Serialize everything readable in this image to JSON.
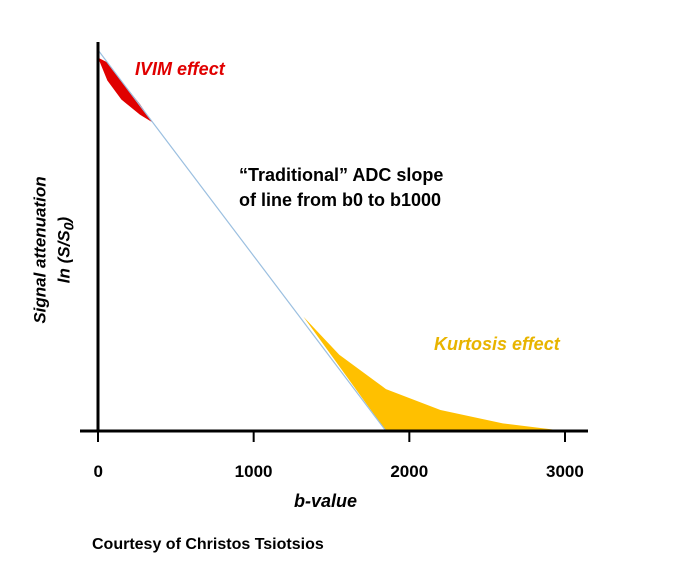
{
  "chart_data": {
    "type": "line",
    "xlabel": "b-value",
    "ylabel_line1": "Signal attenuation",
    "ylabel_line2_prefix": "ln (S/S",
    "ylabel_line2_sub": "0",
    "ylabel_line2_suffix": ")",
    "x_ticks": [
      {
        "value": 0,
        "label": "0"
      },
      {
        "value": 1000,
        "label": "1000"
      },
      {
        "value": 2000,
        "label": "2000"
      },
      {
        "value": 3000,
        "label": "3000"
      }
    ],
    "xlim": [
      0,
      3000
    ],
    "ylim": [
      0,
      1
    ],
    "adc_line": {
      "x": [
        0,
        1850
      ],
      "y": [
        1,
        0
      ],
      "color": "#9bbfe0"
    },
    "regions": [
      {
        "name": "IVIM effect",
        "color": "#e00000",
        "label_color": "#e00000",
        "x": [
          0,
          60,
          150,
          270,
          350,
          270,
          150,
          60,
          0
        ],
        "y": [
          0.98,
          0.92,
          0.87,
          0.83,
          0.81,
          0.8575,
          0.9189,
          0.9676,
          0.98
        ]
      },
      {
        "name": "Kurtosis effect",
        "color": "#ffc000",
        "label_color": "#e8b400",
        "x": [
          1320,
          1550,
          1850,
          2200,
          2600,
          3000,
          1850,
          1320
        ],
        "y": [
          0.3,
          0.2,
          0.11,
          0.055,
          0.02,
          0.0,
          0.0,
          0.3
        ]
      }
    ],
    "annotation": {
      "line1": "“Traditional” ADC slope",
      "line2": "of line from b0 to b1000"
    }
  },
  "credit": "Courtesy of Christos Tsiotsios"
}
